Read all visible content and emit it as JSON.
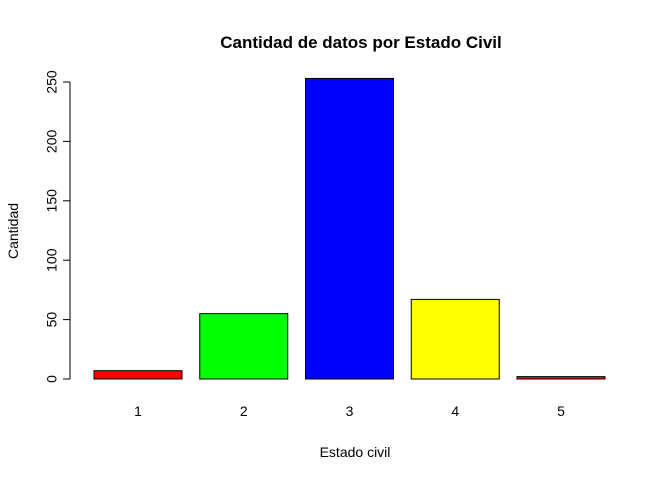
{
  "chart_data": {
    "type": "bar",
    "title": "Cantidad de datos por Estado Civil",
    "xlabel": "Estado civil",
    "ylabel": "Cantidad",
    "categories": [
      "1",
      "2",
      "3",
      "4",
      "5"
    ],
    "values": [
      7,
      55,
      253,
      67,
      2
    ],
    "colors": [
      "#ff0000",
      "#00ff00",
      "#0000ff",
      "#ffff00",
      "#ff0000"
    ],
    "ylim": [
      0,
      250
    ],
    "yticks": [
      0,
      50,
      100,
      150,
      200,
      250
    ],
    "grid": false,
    "legend": "none"
  }
}
